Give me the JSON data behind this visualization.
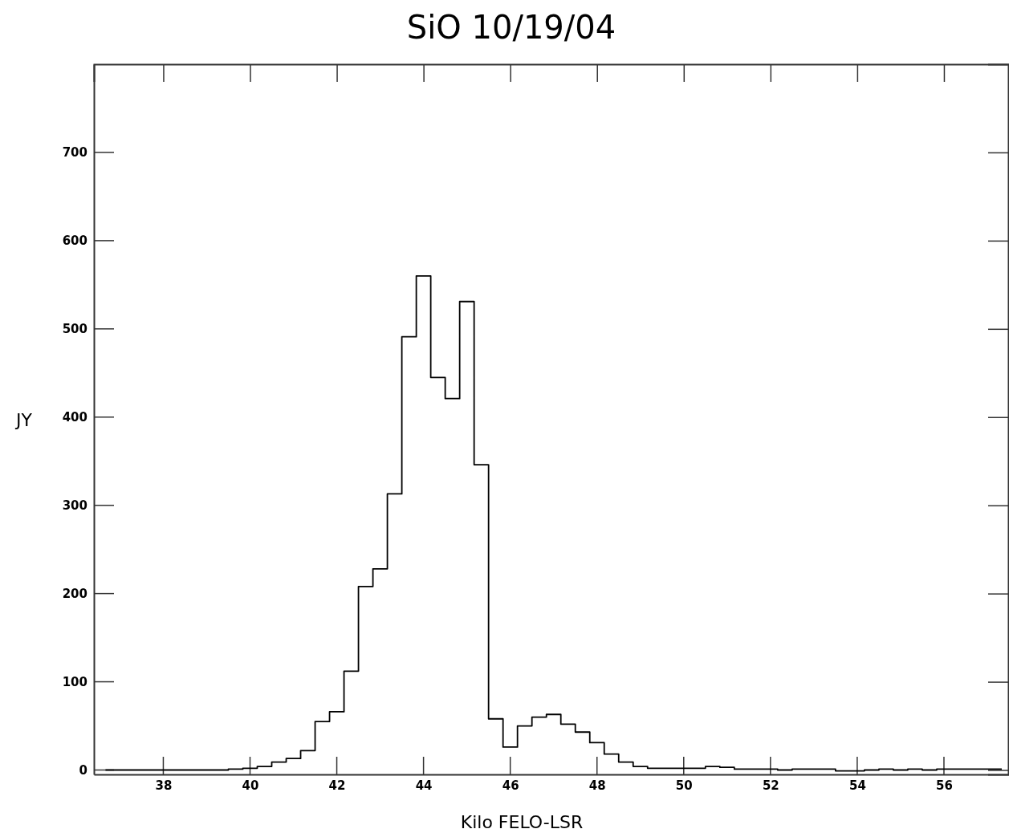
{
  "chart_data": {
    "type": "step",
    "title": "SiO 10/19/04",
    "xlabel": "Kilo FELO-LSR",
    "ylabel": "JY",
    "x": [
      36.667,
      37,
      37.333,
      37.667,
      38,
      38.333,
      38.667,
      39,
      39.333,
      39.667,
      40,
      40.333,
      40.667,
      41,
      41.333,
      41.667,
      42,
      42.333,
      42.667,
      43,
      43.333,
      43.667,
      44,
      44.333,
      44.667,
      45,
      45.333,
      45.667,
      46,
      46.333,
      46.667,
      47,
      47.333,
      47.667,
      48,
      48.333,
      48.667,
      49,
      49.333,
      49.667,
      50,
      50.333,
      50.667,
      51,
      51.333,
      51.667,
      52,
      52.333,
      52.667,
      53,
      53.333,
      53.667,
      54,
      54.333,
      54.667,
      55,
      55.333,
      55.667,
      56,
      56.333,
      56.667,
      57,
      57.333
    ],
    "values": [
      0,
      0,
      0,
      0,
      0,
      0,
      0,
      0,
      0,
      1,
      2,
      4,
      9,
      13,
      22,
      55,
      66,
      112,
      208,
      228,
      313,
      491,
      560,
      445,
      421,
      531,
      346,
      58,
      26,
      50,
      60,
      63,
      52,
      43,
      31,
      18,
      9,
      4,
      2,
      2,
      2,
      2,
      4,
      3,
      1,
      1,
      1,
      0,
      1,
      1,
      1,
      -1,
      -1,
      0,
      1,
      0,
      1,
      0,
      1,
      1,
      1,
      1,
      1
    ],
    "color": "#000000",
    "xlim": [
      36.4,
      57.5
    ],
    "ylim": [
      -5,
      800
    ],
    "xticks": [
      38,
      40,
      42,
      44,
      46,
      48,
      50,
      52,
      54,
      56
    ],
    "yticks": [
      0,
      100,
      200,
      300,
      400,
      500,
      600,
      700
    ],
    "grid": false
  }
}
